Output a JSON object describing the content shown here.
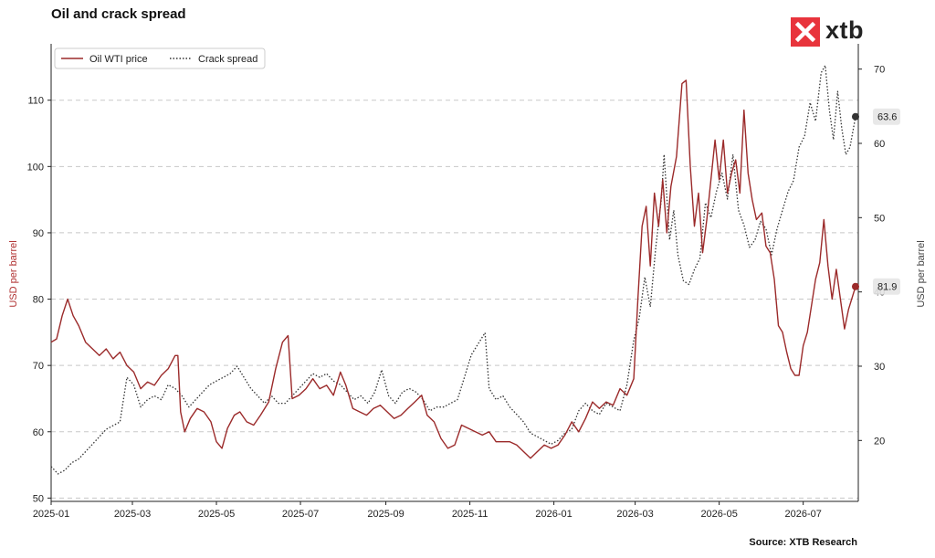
{
  "header": {
    "title": "Oil and crack spread"
  },
  "brand": {
    "name": "xtb",
    "logo_color": "#e8343c"
  },
  "footer": {
    "source": "Source: XTB Research"
  },
  "chart_data": {
    "type": "line",
    "title": "Oil and crack spread",
    "xlabel": "",
    "ylabel_left": "USD per barrel",
    "ylabel_right": "USD per barrel",
    "y_left_ticks": [
      50,
      60,
      70,
      80,
      90,
      100,
      110
    ],
    "y_right_ticks": [
      20,
      30,
      40,
      50,
      60,
      70
    ],
    "ylim_left": [
      49.5,
      118.5
    ],
    "ylim_right": [
      11.8,
      73.4
    ],
    "x_ticks": [
      "2025-01",
      "2025-03",
      "2025-05",
      "2025-07",
      "2025-09",
      "2025-11",
      "2026-01",
      "2026-03",
      "2026-05",
      "2026-07"
    ],
    "xlim": [
      "2025-01-01",
      "2026-08-10"
    ],
    "grid": "horizontal dashed",
    "legend_position": "top-left",
    "colors": {
      "oil": "#9b2a2a",
      "crack": "#333333",
      "grid": "#c8c8c8"
    },
    "series": [
      {
        "name": "Oil WTI price",
        "axis": "left",
        "style": "solid",
        "end_label": "81.9",
        "points": [
          [
            "2025-01-01",
            73.5
          ],
          [
            "2025-01-05",
            74.0
          ],
          [
            "2025-01-09",
            77.5
          ],
          [
            "2025-01-13",
            80.0
          ],
          [
            "2025-01-17",
            77.5
          ],
          [
            "2025-01-21",
            76.0
          ],
          [
            "2025-01-26",
            73.5
          ],
          [
            "2025-01-31",
            72.5
          ],
          [
            "2025-02-05",
            71.5
          ],
          [
            "2025-02-10",
            72.5
          ],
          [
            "2025-02-15",
            71.0
          ],
          [
            "2025-02-20",
            72.0
          ],
          [
            "2025-02-25",
            70.0
          ],
          [
            "2025-03-02",
            69.0
          ],
          [
            "2025-03-07",
            66.5
          ],
          [
            "2025-03-12",
            67.5
          ],
          [
            "2025-03-17",
            67.0
          ],
          [
            "2025-03-22",
            68.5
          ],
          [
            "2025-03-27",
            69.5
          ],
          [
            "2025-04-01",
            71.5
          ],
          [
            "2025-04-03",
            71.5
          ],
          [
            "2025-04-05",
            63.0
          ],
          [
            "2025-04-08",
            60.0
          ],
          [
            "2025-04-12",
            62.0
          ],
          [
            "2025-04-17",
            63.5
          ],
          [
            "2025-04-22",
            63.0
          ],
          [
            "2025-04-27",
            61.5
          ],
          [
            "2025-05-01",
            58.5
          ],
          [
            "2025-05-05",
            57.5
          ],
          [
            "2025-05-09",
            60.5
          ],
          [
            "2025-05-14",
            62.5
          ],
          [
            "2025-05-18",
            63.0
          ],
          [
            "2025-05-23",
            61.5
          ],
          [
            "2025-05-28",
            61.0
          ],
          [
            "2025-06-02",
            62.5
          ],
          [
            "2025-06-08",
            64.5
          ],
          [
            "2025-06-13",
            69.5
          ],
          [
            "2025-06-18",
            73.5
          ],
          [
            "2025-06-22",
            74.5
          ],
          [
            "2025-06-25",
            65.0
          ],
          [
            "2025-06-30",
            65.5
          ],
          [
            "2025-07-05",
            66.5
          ],
          [
            "2025-07-10",
            68.0
          ],
          [
            "2025-07-15",
            66.5
          ],
          [
            "2025-07-20",
            67.0
          ],
          [
            "2025-07-25",
            65.5
          ],
          [
            "2025-07-30",
            69.0
          ],
          [
            "2025-08-03",
            67.0
          ],
          [
            "2025-08-08",
            63.5
          ],
          [
            "2025-08-13",
            63.0
          ],
          [
            "2025-08-18",
            62.5
          ],
          [
            "2025-08-23",
            63.5
          ],
          [
            "2025-08-28",
            64.0
          ],
          [
            "2025-09-02",
            63.0
          ],
          [
            "2025-09-07",
            62.0
          ],
          [
            "2025-09-12",
            62.5
          ],
          [
            "2025-09-17",
            63.5
          ],
          [
            "2025-09-22",
            64.5
          ],
          [
            "2025-09-27",
            65.5
          ],
          [
            "2025-10-01",
            62.5
          ],
          [
            "2025-10-06",
            61.5
          ],
          [
            "2025-10-11",
            59.0
          ],
          [
            "2025-10-16",
            57.5
          ],
          [
            "2025-10-21",
            58.0
          ],
          [
            "2025-10-26",
            61.0
          ],
          [
            "2025-10-31",
            60.5
          ],
          [
            "2025-11-05",
            60.0
          ],
          [
            "2025-11-10",
            59.5
          ],
          [
            "2025-11-15",
            60.0
          ],
          [
            "2025-11-20",
            58.5
          ],
          [
            "2025-11-25",
            58.5
          ],
          [
            "2025-11-30",
            58.5
          ],
          [
            "2025-12-05",
            58.0
          ],
          [
            "2025-12-10",
            57.0
          ],
          [
            "2025-12-15",
            56.0
          ],
          [
            "2025-12-20",
            57.0
          ],
          [
            "2025-12-25",
            58.0
          ],
          [
            "2025-12-30",
            57.5
          ],
          [
            "2026-01-04",
            58.0
          ],
          [
            "2026-01-09",
            59.5
          ],
          [
            "2026-01-14",
            61.5
          ],
          [
            "2026-01-19",
            60.0
          ],
          [
            "2026-01-24",
            62.0
          ],
          [
            "2026-01-29",
            64.5
          ],
          [
            "2026-02-03",
            63.5
          ],
          [
            "2026-02-08",
            64.5
          ],
          [
            "2026-02-13",
            64.0
          ],
          [
            "2026-02-18",
            66.5
          ],
          [
            "2026-02-23",
            65.5
          ],
          [
            "2026-02-28",
            68.0
          ],
          [
            "2026-03-03",
            80.0
          ],
          [
            "2026-03-06",
            91.0
          ],
          [
            "2026-03-09",
            94.0
          ],
          [
            "2026-03-12",
            85.0
          ],
          [
            "2026-03-15",
            96.0
          ],
          [
            "2026-03-18",
            91.0
          ],
          [
            "2026-03-21",
            98.0
          ],
          [
            "2026-03-24",
            90.0
          ],
          [
            "2026-03-27",
            97.0
          ],
          [
            "2026-03-31",
            101.5
          ],
          [
            "2026-04-04",
            112.5
          ],
          [
            "2026-04-07",
            113.0
          ],
          [
            "2026-04-10",
            100.0
          ],
          [
            "2026-04-13",
            91.0
          ],
          [
            "2026-04-16",
            96.0
          ],
          [
            "2026-04-19",
            87.0
          ],
          [
            "2026-04-22",
            92.0
          ],
          [
            "2026-04-25",
            98.0
          ],
          [
            "2026-04-28",
            104.0
          ],
          [
            "2026-05-01",
            98.0
          ],
          [
            "2026-05-04",
            104.0
          ],
          [
            "2026-05-07",
            96.0
          ],
          [
            "2026-05-10",
            99.0
          ],
          [
            "2026-05-13",
            101.0
          ],
          [
            "2026-05-16",
            96.0
          ],
          [
            "2026-05-19",
            108.5
          ],
          [
            "2026-05-22",
            99.0
          ],
          [
            "2026-05-25",
            95.0
          ],
          [
            "2026-05-28",
            92.0
          ],
          [
            "2026-06-01",
            93.0
          ],
          [
            "2026-06-04",
            88.0
          ],
          [
            "2026-06-07",
            87.0
          ],
          [
            "2026-06-10",
            83.0
          ],
          [
            "2026-06-13",
            76.0
          ],
          [
            "2026-06-16",
            75.0
          ],
          [
            "2026-06-19",
            72.0
          ],
          [
            "2026-06-22",
            69.5
          ],
          [
            "2026-06-25",
            68.5
          ],
          [
            "2026-06-28",
            68.5
          ],
          [
            "2026-07-01",
            73.0
          ],
          [
            "2026-07-04",
            75.0
          ],
          [
            "2026-07-07",
            79.0
          ],
          [
            "2026-07-10",
            83.0
          ],
          [
            "2026-07-13",
            85.5
          ],
          [
            "2026-07-16",
            92.0
          ],
          [
            "2026-07-19",
            85.0
          ],
          [
            "2026-07-22",
            80.0
          ],
          [
            "2026-07-25",
            84.5
          ],
          [
            "2026-07-28",
            80.0
          ],
          [
            "2026-07-31",
            75.5
          ],
          [
            "2026-08-03",
            78.5
          ],
          [
            "2026-08-08",
            81.9
          ]
        ]
      },
      {
        "name": "Crack spread",
        "axis": "right",
        "style": "dotted",
        "end_label": "63.6",
        "points": [
          [
            "2025-01-01",
            16.5
          ],
          [
            "2025-01-06",
            15.5
          ],
          [
            "2025-01-11",
            16.0
          ],
          [
            "2025-01-16",
            17.0
          ],
          [
            "2025-01-21",
            17.5
          ],
          [
            "2025-01-26",
            18.5
          ],
          [
            "2025-01-31",
            19.5
          ],
          [
            "2025-02-05",
            20.5
          ],
          [
            "2025-02-10",
            21.5
          ],
          [
            "2025-02-15",
            22.0
          ],
          [
            "2025-02-20",
            22.5
          ],
          [
            "2025-02-25",
            28.5
          ],
          [
            "2025-03-02",
            27.5
          ],
          [
            "2025-03-07",
            24.5
          ],
          [
            "2025-03-12",
            25.5
          ],
          [
            "2025-03-17",
            26.0
          ],
          [
            "2025-03-22",
            25.5
          ],
          [
            "2025-03-27",
            27.5
          ],
          [
            "2025-04-01",
            27.0
          ],
          [
            "2025-04-06",
            26.0
          ],
          [
            "2025-04-11",
            24.5
          ],
          [
            "2025-04-16",
            25.5
          ],
          [
            "2025-04-21",
            26.5
          ],
          [
            "2025-04-26",
            27.5
          ],
          [
            "2025-05-01",
            28.0
          ],
          [
            "2025-05-06",
            28.5
          ],
          [
            "2025-05-11",
            29.0
          ],
          [
            "2025-05-16",
            30.0
          ],
          [
            "2025-05-21",
            28.5
          ],
          [
            "2025-05-26",
            27.0
          ],
          [
            "2025-05-31",
            26.0
          ],
          [
            "2025-06-05",
            25.0
          ],
          [
            "2025-06-10",
            26.0
          ],
          [
            "2025-06-15",
            25.0
          ],
          [
            "2025-06-20",
            25.0
          ],
          [
            "2025-06-25",
            26.0
          ],
          [
            "2025-06-30",
            27.0
          ],
          [
            "2025-07-05",
            28.0
          ],
          [
            "2025-07-10",
            29.0
          ],
          [
            "2025-07-15",
            28.5
          ],
          [
            "2025-07-20",
            29.0
          ],
          [
            "2025-07-25",
            28.0
          ],
          [
            "2025-07-30",
            27.5
          ],
          [
            "2025-08-04",
            26.5
          ],
          [
            "2025-08-09",
            25.5
          ],
          [
            "2025-08-14",
            26.0
          ],
          [
            "2025-08-19",
            25.0
          ],
          [
            "2025-08-24",
            26.5
          ],
          [
            "2025-08-29",
            29.5
          ],
          [
            "2025-09-03",
            26.0
          ],
          [
            "2025-09-08",
            25.0
          ],
          [
            "2025-09-13",
            26.5
          ],
          [
            "2025-09-18",
            27.0
          ],
          [
            "2025-09-23",
            26.5
          ],
          [
            "2025-09-28",
            25.5
          ],
          [
            "2025-10-03",
            24.0
          ],
          [
            "2025-10-08",
            24.5
          ],
          [
            "2025-10-13",
            24.5
          ],
          [
            "2025-10-18",
            25.0
          ],
          [
            "2025-10-23",
            25.5
          ],
          [
            "2025-10-28",
            28.5
          ],
          [
            "2025-11-02",
            31.5
          ],
          [
            "2025-11-07",
            33.0
          ],
          [
            "2025-11-12",
            34.5
          ],
          [
            "2025-11-15",
            27.0
          ],
          [
            "2025-11-20",
            25.5
          ],
          [
            "2025-11-25",
            26.0
          ],
          [
            "2025-11-30",
            24.5
          ],
          [
            "2025-12-05",
            23.5
          ],
          [
            "2025-12-10",
            22.5
          ],
          [
            "2025-12-15",
            21.0
          ],
          [
            "2025-12-20",
            20.5
          ],
          [
            "2025-12-25",
            20.0
          ],
          [
            "2025-12-30",
            19.5
          ],
          [
            "2026-01-04",
            20.0
          ],
          [
            "2026-01-09",
            21.0
          ],
          [
            "2026-01-14",
            21.5
          ],
          [
            "2026-01-19",
            24.0
          ],
          [
            "2026-01-24",
            25.0
          ],
          [
            "2026-01-29",
            24.0
          ],
          [
            "2026-02-03",
            23.5
          ],
          [
            "2026-02-08",
            25.0
          ],
          [
            "2026-02-13",
            24.5
          ],
          [
            "2026-02-18",
            24.0
          ],
          [
            "2026-02-23",
            27.5
          ],
          [
            "2026-02-28",
            33.5
          ],
          [
            "2026-03-04",
            36.5
          ],
          [
            "2026-03-08",
            42.0
          ],
          [
            "2026-03-12",
            38.0
          ],
          [
            "2026-03-16",
            46.0
          ],
          [
            "2026-03-20",
            52.5
          ],
          [
            "2026-03-22",
            58.5
          ],
          [
            "2026-03-26",
            47.0
          ],
          [
            "2026-03-29",
            51.0
          ],
          [
            "2026-04-01",
            45.0
          ],
          [
            "2026-04-05",
            41.5
          ],
          [
            "2026-04-09",
            41.0
          ],
          [
            "2026-04-13",
            43.0
          ],
          [
            "2026-04-17",
            44.5
          ],
          [
            "2026-04-21",
            52.0
          ],
          [
            "2026-04-25",
            50.0
          ],
          [
            "2026-04-29",
            53.5
          ],
          [
            "2026-05-03",
            56.0
          ],
          [
            "2026-05-07",
            52.5
          ],
          [
            "2026-05-11",
            58.5
          ],
          [
            "2026-05-15",
            51.0
          ],
          [
            "2026-05-19",
            49.0
          ],
          [
            "2026-05-23",
            46.0
          ],
          [
            "2026-05-27",
            47.0
          ],
          [
            "2026-05-31",
            49.5
          ],
          [
            "2026-06-04",
            48.5
          ],
          [
            "2026-06-08",
            45.0
          ],
          [
            "2026-06-12",
            48.5
          ],
          [
            "2026-06-16",
            51.0
          ],
          [
            "2026-06-20",
            53.5
          ],
          [
            "2026-06-24",
            55.0
          ],
          [
            "2026-06-28",
            59.5
          ],
          [
            "2026-07-02",
            61.0
          ],
          [
            "2026-07-06",
            65.5
          ],
          [
            "2026-07-10",
            63.0
          ],
          [
            "2026-07-14",
            69.5
          ],
          [
            "2026-07-17",
            70.5
          ],
          [
            "2026-07-20",
            64.5
          ],
          [
            "2026-07-23",
            60.5
          ],
          [
            "2026-07-26",
            67.0
          ],
          [
            "2026-07-29",
            62.0
          ],
          [
            "2026-08-01",
            58.5
          ],
          [
            "2026-08-04",
            59.5
          ],
          [
            "2026-08-08",
            63.6
          ]
        ]
      }
    ]
  }
}
